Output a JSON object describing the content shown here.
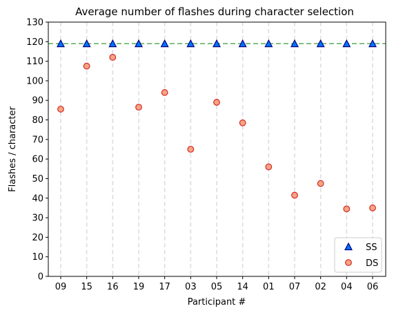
{
  "chart_data": {
    "type": "scatter",
    "title": "Average number of flashes during character selection",
    "xlabel": "Participant #",
    "ylabel": "Flashes / character",
    "categories": [
      "09",
      "15",
      "16",
      "19",
      "17",
      "03",
      "05",
      "14",
      "01",
      "07",
      "02",
      "04",
      "06"
    ],
    "ylim": [
      0,
      130
    ],
    "yticks": [
      0,
      10,
      20,
      30,
      40,
      50,
      60,
      70,
      80,
      90,
      100,
      110,
      120,
      130
    ],
    "reference_line": {
      "y": 119,
      "color": "#66b266",
      "style": "dashed"
    },
    "vertical_gridlines": {
      "style": "dashed",
      "color": "#dddddd"
    },
    "legend_position": "lower-right",
    "series": [
      {
        "name": "SS",
        "marker": "triangle",
        "fill": "#0072ff",
        "edge": "#000080",
        "values": [
          119,
          119,
          119,
          119,
          119,
          119,
          119,
          119,
          119,
          119,
          119,
          119,
          119
        ]
      },
      {
        "name": "DS",
        "marker": "circle",
        "fill": "#f4a582",
        "edge": "#d62728",
        "values": [
          85.5,
          107.5,
          112,
          86.5,
          94,
          65,
          89,
          78.5,
          56,
          41.5,
          47.5,
          34.5,
          35
        ]
      }
    ]
  }
}
